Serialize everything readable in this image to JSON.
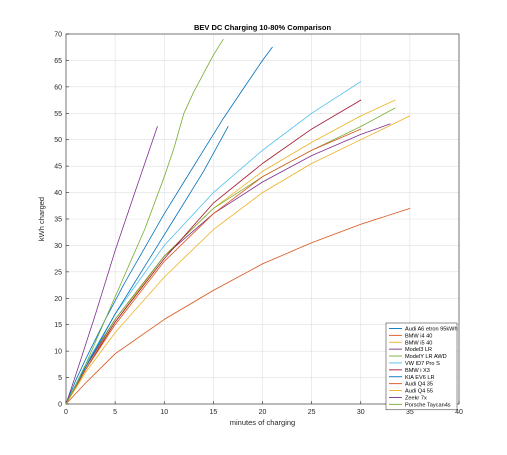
{
  "chart_data": {
    "type": "line",
    "title": "BEV DC Charging 10-80% Comparison",
    "xlabel": "minutes of charging",
    "ylabel": "kWh charged",
    "xlim": [
      0,
      40
    ],
    "ylim": [
      0,
      70
    ],
    "xticks": [
      0,
      5,
      10,
      15,
      20,
      25,
      30,
      35,
      40
    ],
    "yticks": [
      0,
      5,
      10,
      15,
      20,
      25,
      30,
      35,
      40,
      45,
      50,
      55,
      60,
      65,
      70
    ],
    "grid": true,
    "legend_position": "bottom-right",
    "series": [
      {
        "name": "Audi A6 etron 95kWh",
        "color": "#0072bd",
        "x": [
          0,
          1,
          2,
          4,
          6,
          8,
          10,
          12,
          14,
          16,
          18,
          20,
          21
        ],
        "y": [
          0,
          4.5,
          8.5,
          16,
          23,
          29.5,
          36,
          42,
          48,
          54,
          59.5,
          65,
          67.5
        ]
      },
      {
        "name": "BMW i4 40",
        "color": "#d95319",
        "x": [
          0,
          2,
          5,
          10,
          15,
          20,
          25,
          30,
          35
        ],
        "y": [
          0,
          4,
          9.5,
          16,
          21.5,
          26.5,
          30.5,
          34,
          37
        ]
      },
      {
        "name": "BMW i5 40",
        "color": "#edb120",
        "x": [
          0,
          2,
          5,
          10,
          15,
          20,
          25,
          30,
          33.5
        ],
        "y": [
          0,
          7,
          15.5,
          28,
          37,
          44,
          49.5,
          54.5,
          57.5
        ]
      },
      {
        "name": "Model3 LR",
        "color": "#7e2f8e",
        "x": [
          0,
          2,
          5,
          10,
          15,
          20,
          25,
          30,
          33
        ],
        "y": [
          0,
          7,
          16,
          28,
          36,
          42,
          47,
          51,
          53
        ]
      },
      {
        "name": "ModelY LR AWD",
        "color": "#77ac30",
        "x": [
          0,
          2,
          5,
          10,
          15,
          20,
          25,
          30,
          33.5
        ],
        "y": [
          0,
          7.5,
          16,
          28,
          37,
          43,
          48,
          52.5,
          56
        ]
      },
      {
        "name": "VW ID7 Pro S",
        "color": "#4dbeee",
        "x": [
          0,
          2,
          5,
          10,
          15,
          20,
          25,
          30
        ],
        "y": [
          0,
          7.5,
          17,
          30,
          40,
          48,
          55,
          61
        ]
      },
      {
        "name": "BMW i X3",
        "color": "#a2142f",
        "x": [
          0,
          2,
          5,
          10,
          15,
          20,
          25,
          30
        ],
        "y": [
          0,
          6.5,
          15.5,
          27.5,
          38,
          45.5,
          52,
          57.5
        ]
      },
      {
        "name": "KIA EV6 LR",
        "color": "#0072bd",
        "x": [
          0,
          2,
          5,
          8,
          11,
          14,
          16.5
        ],
        "y": [
          0,
          7,
          17,
          26,
          35,
          44,
          52.5
        ]
      },
      {
        "name": "Audi Q4 35",
        "color": "#d95319",
        "x": [
          0,
          2,
          5,
          10,
          15,
          20,
          25,
          30
        ],
        "y": [
          0,
          6.5,
          15,
          27,
          36,
          43,
          48,
          52
        ]
      },
      {
        "name": "Audi Q4 55",
        "color": "#edb120",
        "x": [
          0,
          2,
          5,
          10,
          15,
          20,
          25,
          30,
          35
        ],
        "y": [
          0,
          6,
          13.5,
          24,
          33,
          40,
          45.5,
          50,
          54.5
        ]
      },
      {
        "name": "Zeekr 7x",
        "color": "#7e2f8e",
        "x": [
          0,
          1,
          3,
          5,
          7,
          9.3
        ],
        "y": [
          0,
          5.5,
          17,
          29,
          40,
          52.5
        ]
      },
      {
        "name": "Porsche Taycan4s",
        "color": "#77ac30",
        "x": [
          0,
          1,
          2,
          4,
          6,
          8,
          10,
          11,
          12,
          13,
          14,
          15,
          16
        ],
        "y": [
          0,
          3.5,
          7.5,
          16,
          24.5,
          33,
          43,
          48.5,
          55,
          59,
          62.5,
          66,
          69
        ]
      }
    ]
  }
}
